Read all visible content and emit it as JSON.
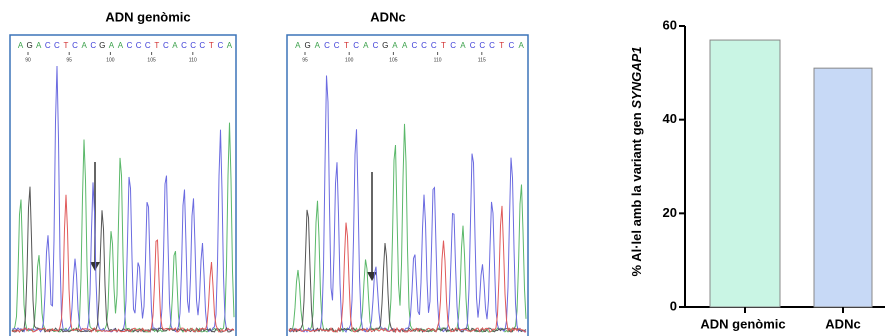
{
  "panels": [
    {
      "title": "ADN genòmic",
      "sequence": [
        "A",
        "G",
        "A",
        "C",
        "C",
        "T",
        "C",
        "A",
        "C",
        "G",
        "A",
        "A",
        "C",
        "C",
        "C",
        "T",
        "C",
        "A",
        "C",
        "C",
        "C",
        "T",
        "C",
        "A"
      ],
      "positions": [
        90,
        95,
        100,
        105,
        110
      ]
    },
    {
      "title": "ADNc",
      "sequence": [
        "A",
        "G",
        "A",
        "C",
        "C",
        "T",
        "C",
        "A",
        "C",
        "G",
        "A",
        "A",
        "C",
        "C",
        "C",
        "T",
        "C",
        "A",
        "C",
        "C",
        "C",
        "T",
        "C",
        "A"
      ],
      "positions": [
        95,
        100,
        105,
        110,
        115
      ]
    }
  ],
  "chart_data": {
    "type": "bar",
    "categories": [
      "ADN genòmic",
      "ADNc"
    ],
    "values": [
      57,
      51
    ],
    "colors": [
      "#c9f5e4",
      "#c7d9f6"
    ],
    "ylabel": "% Al·lel amb la variant gen",
    "ylabel_italic": "SYNGAP1",
    "ylim": [
      0,
      60
    ],
    "yticks": [
      0,
      20,
      40,
      60
    ]
  }
}
